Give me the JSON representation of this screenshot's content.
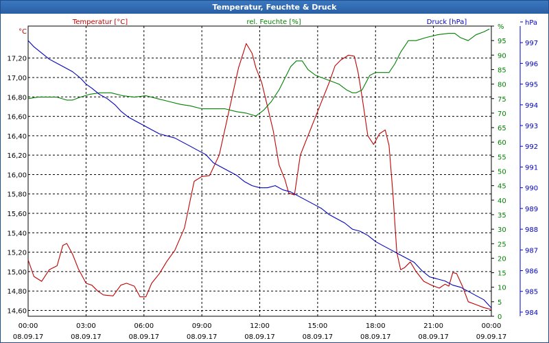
{
  "window": {
    "title": "Temperatur, Feuchte & Druck"
  },
  "chart_data": {
    "type": "line",
    "title": "Temperatur, Feuchte & Druck",
    "x_ticks": [
      {
        "time": "00:00",
        "date": "08.09.17"
      },
      {
        "time": "03:00",
        "date": "08.09.17"
      },
      {
        "time": "06:00",
        "date": "08.09.17"
      },
      {
        "time": "09:00",
        "date": "08.09.17"
      },
      {
        "time": "12:00",
        "date": "08.09.17"
      },
      {
        "time": "15:00",
        "date": "08.09.17"
      },
      {
        "time": "18:00",
        "date": "08.09.17"
      },
      {
        "time": "21:00",
        "date": "08.09.17"
      },
      {
        "time": "00:00",
        "date": "09.09.17"
      }
    ],
    "xlim_hours": [
      0,
      24
    ],
    "grid": true,
    "axes": {
      "left": {
        "unit": "°C",
        "label": "Temperatur [°C]",
        "color": "#c00000",
        "ticks": [
          "14,60",
          "14,80",
          "15,00",
          "15,20",
          "15,40",
          "15,60",
          "15,80",
          "16,00",
          "16,20",
          "16,40",
          "16,60",
          "16,80",
          "17,00",
          "17,20"
        ],
        "range": [
          14.54,
          17.53
        ]
      },
      "right1": {
        "unit": "%",
        "label": "rel. Feuchte [%]",
        "color": "#008000",
        "ticks": [
          "0",
          "5",
          "10",
          "15",
          "20",
          "25",
          "30",
          "35",
          "40",
          "45",
          "50",
          "55",
          "60",
          "65",
          "70",
          "75",
          "80",
          "85",
          "90",
          "95",
          "%"
        ],
        "range": [
          0,
          100
        ]
      },
      "right2": {
        "unit": "hPa",
        "label": "Druck [hPa]",
        "color": "#0000c0",
        "ticks": [
          "984",
          "985",
          "986",
          "987",
          "988",
          "989",
          "990",
          "991",
          "992",
          "993",
          "994",
          "995",
          "996",
          "997",
          "hPa"
        ],
        "range": [
          983.8,
          997.8
        ]
      }
    },
    "series": [
      {
        "name": "Temperatur [°C]",
        "axis": "left",
        "color": "#c00000",
        "x": [
          0,
          0.3,
          0.7,
          1.1,
          1.5,
          1.8,
          2.0,
          2.3,
          2.6,
          3.0,
          3.3,
          3.6,
          3.9,
          4.4,
          4.8,
          5.1,
          5.5,
          5.8,
          6.1,
          6.4,
          6.8,
          7.2,
          7.6,
          8.1,
          8.6,
          9.0,
          9.4,
          9.9,
          10.4,
          10.9,
          11.3,
          11.6,
          11.8,
          12.1,
          12.4,
          12.7,
          13.0,
          13.3,
          13.5,
          13.8,
          14.1,
          14.4,
          14.8,
          15.2,
          15.6,
          15.9,
          16.2,
          16.6,
          16.9,
          17.1,
          17.3,
          17.6,
          17.9,
          18.2,
          18.5,
          18.7,
          18.9,
          19.1,
          19.3,
          19.5,
          19.8,
          20.1,
          20.5,
          20.9,
          21.3,
          21.6,
          21.8,
          22.0,
          22.2,
          22.5,
          22.8,
          23.2,
          23.6,
          24.0
        ],
        "y": [
          15.12,
          14.95,
          14.9,
          15.02,
          15.06,
          15.27,
          15.29,
          15.18,
          15.03,
          14.88,
          14.86,
          14.8,
          14.76,
          14.75,
          14.86,
          14.88,
          14.85,
          14.74,
          14.74,
          14.88,
          14.98,
          15.11,
          15.22,
          15.45,
          15.93,
          15.98,
          15.99,
          16.2,
          16.65,
          17.1,
          17.35,
          17.25,
          17.1,
          16.95,
          16.7,
          16.45,
          16.1,
          15.95,
          15.81,
          15.79,
          16.2,
          16.35,
          16.55,
          16.75,
          16.95,
          17.12,
          17.18,
          17.23,
          17.22,
          17.05,
          16.8,
          16.4,
          16.31,
          16.42,
          16.46,
          16.3,
          15.8,
          15.2,
          15.02,
          15.04,
          15.1,
          15.0,
          14.9,
          14.86,
          14.83,
          14.87,
          14.85,
          14.99,
          14.98,
          14.85,
          14.69,
          14.66,
          14.63,
          14.61
        ]
      },
      {
        "name": "rel. Feuchte [%]",
        "axis": "right1",
        "color": "#008000",
        "x": [
          0,
          0.5,
          1.0,
          1.5,
          2.0,
          2.3,
          2.7,
          3.2,
          3.7,
          4.3,
          4.9,
          5.5,
          6.1,
          6.7,
          7.3,
          7.9,
          8.4,
          9.0,
          9.6,
          10.2,
          10.8,
          11.3,
          11.8,
          12.2,
          12.6,
          13.0,
          13.3,
          13.6,
          13.9,
          14.2,
          14.5,
          14.9,
          15.3,
          15.7,
          16.1,
          16.5,
          16.8,
          17.0,
          17.3,
          17.7,
          18.0,
          18.3,
          18.7,
          19.0,
          19.3,
          19.7,
          20.1,
          20.6,
          21.2,
          21.8,
          22.1,
          22.4,
          22.8,
          23.2,
          23.6,
          23.9
        ],
        "y": [
          75,
          75.5,
          75.5,
          75.5,
          74.5,
          74.5,
          75.5,
          76.5,
          77,
          77,
          76,
          75.5,
          76,
          75,
          74,
          73,
          72.5,
          71.5,
          71.5,
          71.5,
          70.5,
          70,
          69,
          71,
          74,
          78,
          82,
          86,
          88,
          88,
          85,
          83,
          82,
          81,
          80,
          78,
          77,
          77,
          78,
          83,
          84,
          84,
          84,
          87,
          91,
          95,
          95,
          96,
          97,
          97.5,
          97.5,
          96,
          95,
          97,
          98,
          99
        ]
      },
      {
        "name": "Druck [hPa]",
        "axis": "right2",
        "color": "#0000c0",
        "x": [
          0,
          0.3,
          0.7,
          1.1,
          1.5,
          1.9,
          2.3,
          2.7,
          3.0,
          3.3,
          3.7,
          4.1,
          4.5,
          4.8,
          5.2,
          5.6,
          6.0,
          6.4,
          6.8,
          7.2,
          7.6,
          8.0,
          8.4,
          8.8,
          9.2,
          9.6,
          10.0,
          10.4,
          10.8,
          11.2,
          11.6,
          12.0,
          12.4,
          12.8,
          13.2,
          13.6,
          14.0,
          14.4,
          14.8,
          15.2,
          15.6,
          16.0,
          16.4,
          16.8,
          17.2,
          17.6,
          18.0,
          18.4,
          18.8,
          19.2,
          19.6,
          20.0,
          20.4,
          20.8,
          21.2,
          21.6,
          22.0,
          22.4,
          22.8,
          23.2,
          23.6,
          24.0
        ],
        "y": [
          997.1,
          996.8,
          996.5,
          996.2,
          996.0,
          995.8,
          995.6,
          995.3,
          995.0,
          994.8,
          994.5,
          994.3,
          994.0,
          993.7,
          993.4,
          993.2,
          993.0,
          992.8,
          992.6,
          992.5,
          992.4,
          992.2,
          992.0,
          991.8,
          991.6,
          991.2,
          991.0,
          990.8,
          990.6,
          990.3,
          990.1,
          990.0,
          990.0,
          990.1,
          989.9,
          989.8,
          989.6,
          989.4,
          989.2,
          989.0,
          988.7,
          988.5,
          988.3,
          988.0,
          987.9,
          987.7,
          987.4,
          987.2,
          987.0,
          986.8,
          986.6,
          986.4,
          986.0,
          985.7,
          985.6,
          985.5,
          985.3,
          985.2,
          985.0,
          984.8,
          984.6,
          984.2
        ]
      }
    ]
  }
}
